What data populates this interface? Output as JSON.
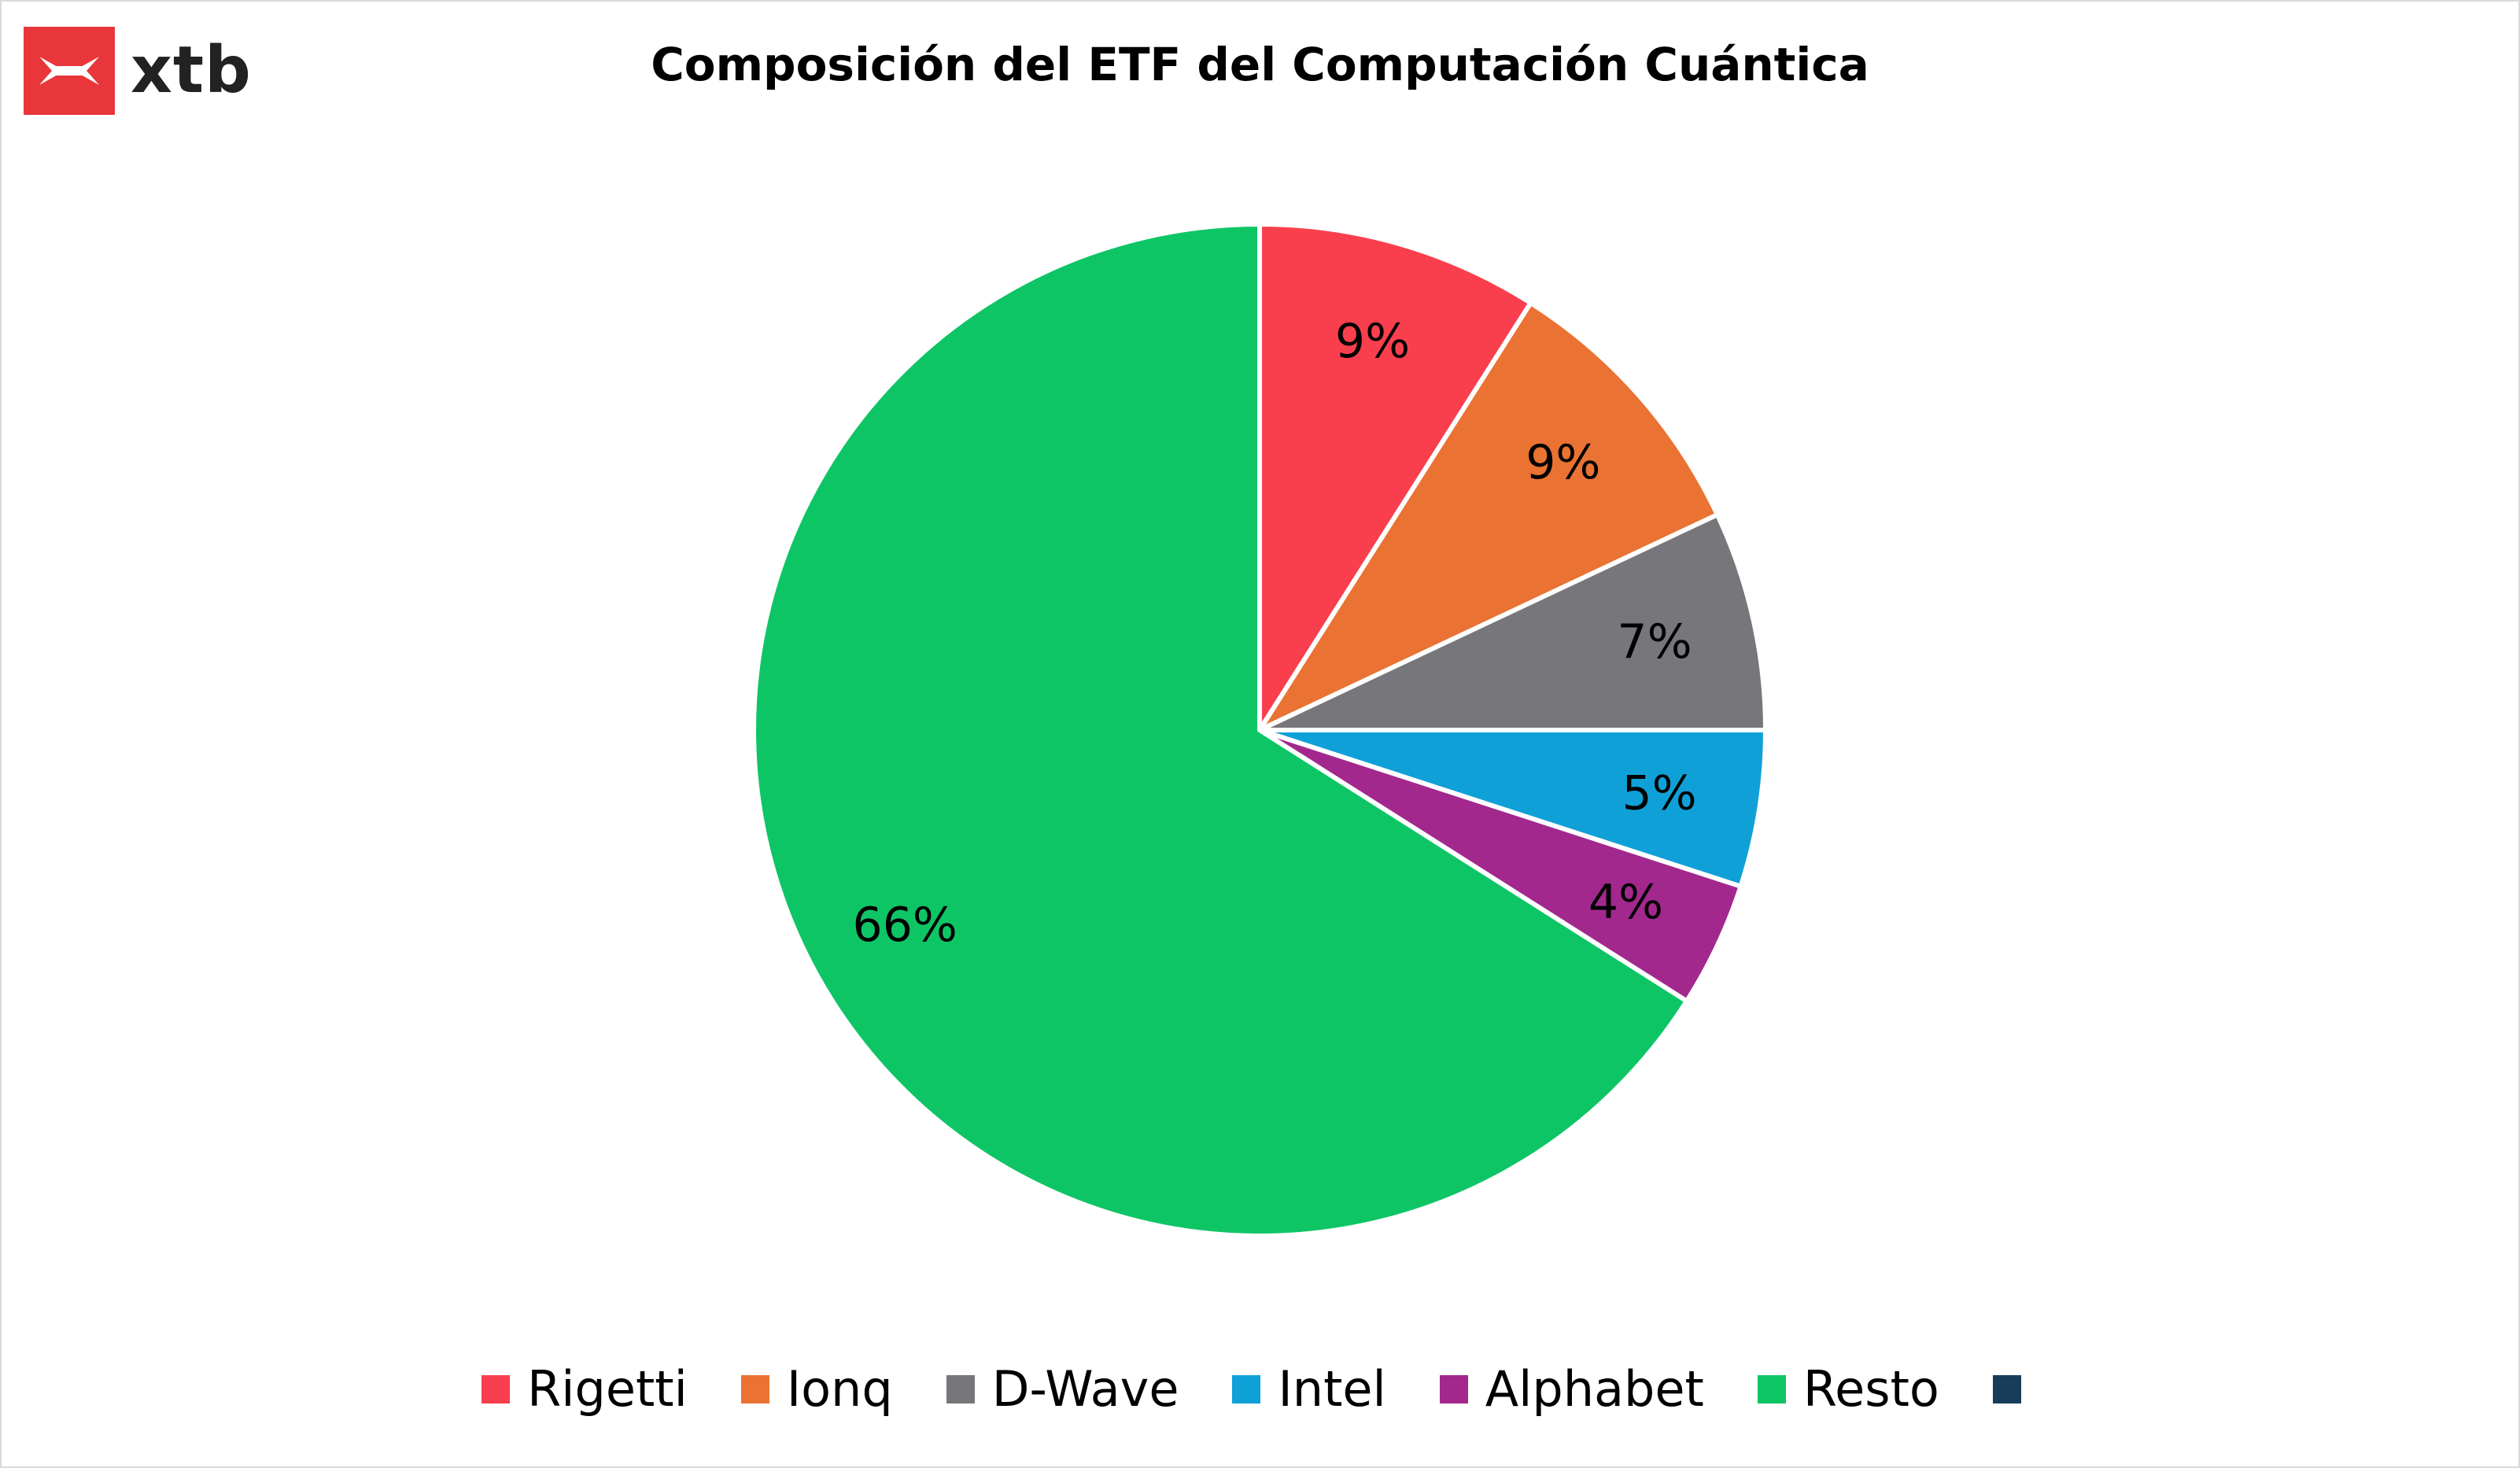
{
  "brand": {
    "logo_text": "xtb",
    "logo_color": "#e8363b"
  },
  "chart_data": {
    "type": "pie",
    "title": "Composición del ETF del Computación Cuántica",
    "categories": [
      "Rigetti",
      "Ionq",
      "D-Wave",
      "Intel",
      "Alphabet",
      "Resto",
      ""
    ],
    "values": [
      9,
      9,
      7,
      5,
      4,
      66,
      0
    ],
    "labels": [
      "9%",
      "9%",
      "7%",
      "5%",
      "4%",
      "66%",
      ""
    ],
    "colors": [
      "#f93f4d",
      "#ea7232",
      "#77767b",
      "#10a0d8",
      "#a2288e",
      "#0ec566",
      "#173d5a"
    ],
    "legend_position": "bottom"
  }
}
